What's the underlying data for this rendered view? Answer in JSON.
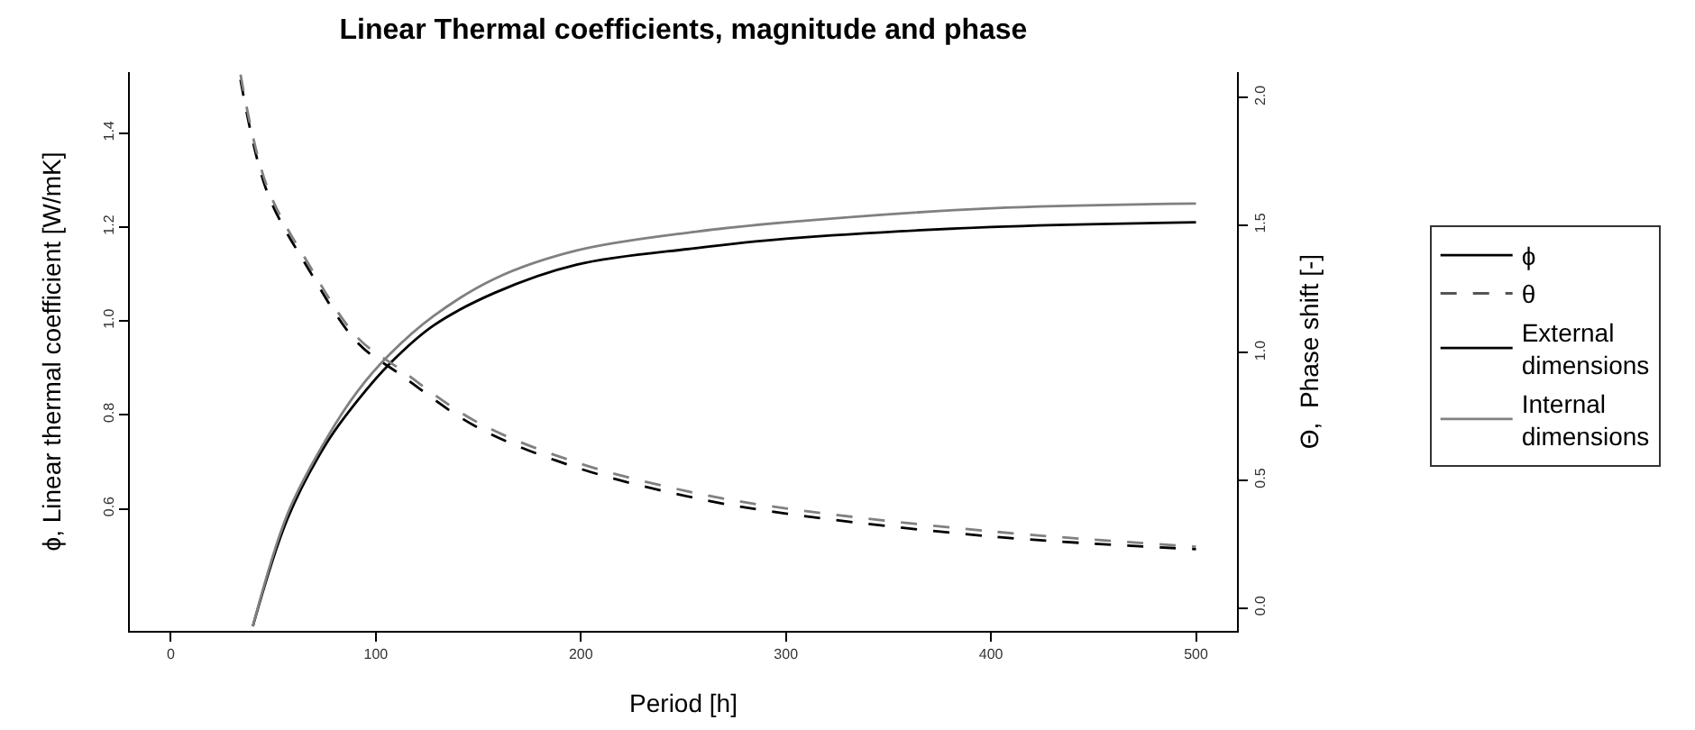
{
  "chart_data": {
    "type": "line",
    "title": "Linear Thermal coefficients, magnitude and phase",
    "xlabel": "Period [h]",
    "ylabel": "ϕ, Linear thermal coefficient [W/mK]",
    "y2label": "Θ,  Phase shift [-]",
    "xlim": [
      -20,
      520
    ],
    "xticks": [
      0,
      100,
      200,
      300,
      400,
      500
    ],
    "ylim": [
      0.34,
      1.53
    ],
    "yticks": [
      {
        "value": 0.6,
        "label": "0.6"
      },
      {
        "value": 0.8,
        "label": "0.8"
      },
      {
        "value": 1.0,
        "label": "1.0"
      },
      {
        "value": 1.2,
        "label": "1.2"
      },
      {
        "value": 1.4,
        "label": "1.4"
      }
    ],
    "y2lim": [
      -0.09,
      2.1
    ],
    "y2ticks": [
      {
        "value": 0,
        "label": "0.0"
      },
      {
        "value": 0.5,
        "label": "0.5"
      },
      {
        "value": 1.0,
        "label": "1.0"
      },
      {
        "value": 1.5,
        "label": "1.5"
      },
      {
        "value": 2.0,
        "label": "2.0"
      }
    ],
    "legend": "right",
    "marker": "none",
    "series": [
      {
        "color": "#000000",
        "line_style": "solid",
        "x": [
          40,
          57,
          76,
          91,
          107,
          128,
          158,
          198,
          256,
          300,
          400,
          500
        ],
        "values": [
          0.35,
          0.58,
          0.74,
          0.83,
          0.91,
          0.99,
          1.06,
          1.12,
          1.155,
          1.175,
          1.2,
          1.21
        ]
      },
      {
        "color": "#808080",
        "line_style": "solid",
        "x": [
          40,
          57,
          76,
          91,
          107,
          128,
          158,
          198,
          256,
          300,
          400,
          500
        ],
        "values": [
          0.35,
          0.59,
          0.75,
          0.85,
          0.93,
          1.01,
          1.09,
          1.15,
          1.19,
          1.21,
          1.24,
          1.25
        ]
      },
      {
        "color": "#000000",
        "line_style": "dashed",
        "axis": "y2",
        "x": [
          34,
          47,
          67,
          91,
          111,
          149,
          198,
          256,
          300,
          400,
          500
        ],
        "values": [
          2.07,
          1.63,
          1.33,
          1.04,
          0.92,
          0.71,
          0.55,
          0.43,
          0.37,
          0.28,
          0.23
        ]
      },
      {
        "color": "#808080",
        "line_style": "dashed",
        "axis": "y2",
        "x": [
          34,
          47,
          67,
          91,
          111,
          149,
          198,
          256,
          300,
          400,
          500
        ],
        "values": [
          2.09,
          1.65,
          1.35,
          1.06,
          0.94,
          0.73,
          0.57,
          0.45,
          0.39,
          0.3,
          0.24
        ]
      },
      {
        "name": "ϕ",
        "color": "#000000",
        "line_style": "solid"
      },
      {
        "name": "θ",
        "color": "#555555",
        "line_style": "dashed"
      },
      {
        "name": "External dimensions",
        "color": "#000000",
        "line_style": "solid"
      },
      {
        "name": "Internal dimensions",
        "color": "#808080",
        "line_style": "solid"
      }
    ]
  }
}
